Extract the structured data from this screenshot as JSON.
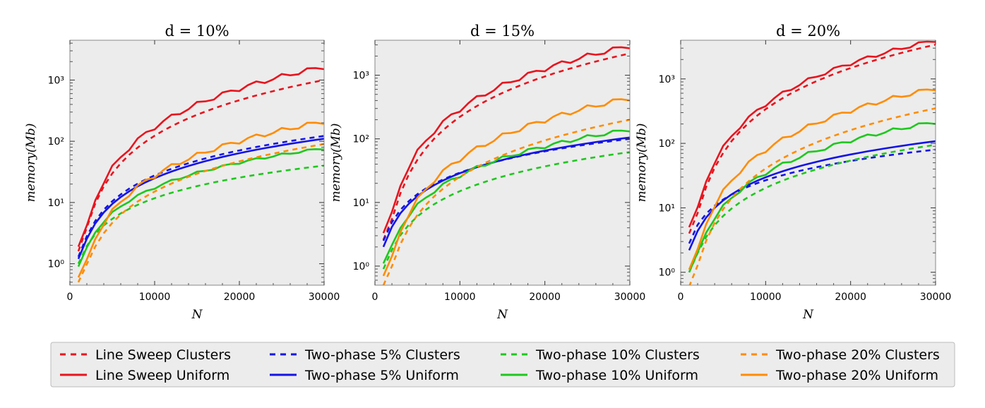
{
  "chart_data": {
    "type": "line",
    "ylabel": "memory(Mb)",
    "xlabel": "N",
    "xlim": [
      0,
      30000
    ],
    "xticks": [
      "0",
      "10000",
      "20000",
      "30000"
    ],
    "yscale": "log",
    "legend_placement": "bottom",
    "grid": false,
    "x": [
      1000,
      2000,
      3000,
      4000,
      5000,
      6000,
      7000,
      8000,
      9000,
      10000,
      11000,
      12000,
      13000,
      14000,
      15000,
      16000,
      17000,
      18000,
      19000,
      20000,
      21000,
      22000,
      23000,
      24000,
      25000,
      26000,
      27000,
      28000,
      29000,
      30000
    ],
    "series_styles": [
      {
        "name": "Line Sweep Clusters",
        "color": "#e8141e",
        "dashed": true
      },
      {
        "name": "Line Sweep Uniform",
        "color": "#e8141e",
        "dashed": false
      },
      {
        "name": "Two-phase 5% Clusters",
        "color": "#1414e6",
        "dashed": true
      },
      {
        "name": "Two-phase 5% Uniform",
        "color": "#1414e6",
        "dashed": false
      },
      {
        "name": "Two-phase 10% Clusters",
        "color": "#1ec81e",
        "dashed": true
      },
      {
        "name": "Two-phase 10% Uniform",
        "color": "#1ec81e",
        "dashed": false
      },
      {
        "name": "Two-phase 20% Clusters",
        "color": "#ff8c00",
        "dashed": true
      },
      {
        "name": "Two-phase 20% Uniform",
        "color": "#ff8c00",
        "dashed": false
      }
    ],
    "panels": [
      {
        "title": "d = 10%",
        "ylim_log10": [
          -0.35,
          3.65
        ],
        "yticks": [
          {
            "label": "10⁰",
            "v": 0
          },
          {
            "label": "10¹",
            "v": 1
          },
          {
            "label": "10²",
            "v": 2
          },
          {
            "label": "10³",
            "v": 3
          }
        ],
        "series": [
          {
            "name": "Line Sweep Clusters",
            "endpoints": [
              1.6,
              1000
            ],
            "exp": 1.8
          },
          {
            "name": "Line Sweep Uniform",
            "endpoints": [
              1.9,
              1650
            ],
            "exp": 1.95,
            "wiggle": 0.04
          },
          {
            "name": "Two-phase 5% Clusters",
            "endpoints": [
              1.3,
              122
            ],
            "exp": 1.3
          },
          {
            "name": "Two-phase 5% Uniform",
            "endpoints": [
              1.2,
              110
            ],
            "exp": 1.3
          },
          {
            "name": "Two-phase 10% Clusters",
            "endpoints": [
              1.0,
              40
            ],
            "exp": 1.1
          },
          {
            "name": "Two-phase 10% Uniform",
            "endpoints": [
              0.9,
              77
            ],
            "exp": 1.3,
            "wiggle": 0.02
          },
          {
            "name": "Two-phase 20% Clusters",
            "endpoints": [
              0.5,
              90
            ],
            "exp": 1.55
          },
          {
            "name": "Two-phase 20% Uniform",
            "endpoints": [
              0.6,
              210
            ],
            "exp": 1.75,
            "wiggle": 0.04
          }
        ]
      },
      {
        "title": "d = 15%",
        "ylim_log10": [
          -0.3,
          3.55
        ],
        "yticks": [
          {
            "label": "10⁰",
            "v": 0
          },
          {
            "label": "10¹",
            "v": 1
          },
          {
            "label": "10²",
            "v": 2
          },
          {
            "label": "10³",
            "v": 3
          }
        ],
        "series": [
          {
            "name": "Line Sweep Clusters",
            "endpoints": [
              2.6,
              2200
            ],
            "exp": 1.97
          },
          {
            "name": "Line Sweep Uniform",
            "endpoints": [
              3.3,
              2900
            ],
            "exp": 1.97,
            "wiggle": 0.04
          },
          {
            "name": "Two-phase 5% Clusters",
            "endpoints": [
              2.5,
              100
            ],
            "exp": 1.1
          },
          {
            "name": "Two-phase 5% Uniform",
            "endpoints": [
              2.0,
              105
            ],
            "exp": 1.15
          },
          {
            "name": "Two-phase 10% Clusters",
            "endpoints": [
              0.9,
              62
            ],
            "exp": 1.25
          },
          {
            "name": "Two-phase 10% Uniform",
            "endpoints": [
              1.1,
              140
            ],
            "exp": 1.45,
            "wiggle": 0.03
          },
          {
            "name": "Two-phase 20% Clusters",
            "endpoints": [
              0.5,
              200
            ],
            "exp": 1.78
          },
          {
            "name": "Two-phase 20% Uniform",
            "endpoints": [
              0.7,
              440
            ],
            "exp": 1.9,
            "wiggle": 0.04
          }
        ]
      },
      {
        "title": "d = 20%",
        "ylim_log10": [
          -0.2,
          3.6
        ],
        "yticks": [
          {
            "label": "10⁰",
            "v": 0
          },
          {
            "label": "10¹",
            "v": 1
          },
          {
            "label": "10²",
            "v": 2
          },
          {
            "label": "10³",
            "v": 3
          }
        ],
        "series": [
          {
            "name": "Line Sweep Clusters",
            "endpoints": [
              4.0,
              3400
            ],
            "exp": 1.98
          },
          {
            "name": "Line Sweep Uniform",
            "endpoints": [
              5.0,
              4000
            ],
            "exp": 1.97,
            "wiggle": 0.03
          },
          {
            "name": "Two-phase 5% Clusters",
            "endpoints": [
              2.8,
              80
            ],
            "exp": 1.0
          },
          {
            "name": "Two-phase 5% Uniform",
            "endpoints": [
              2.2,
              108
            ],
            "exp": 1.15
          },
          {
            "name": "Two-phase 10% Clusters",
            "endpoints": [
              1.0,
              95
            ],
            "exp": 1.35
          },
          {
            "name": "Two-phase 10% Uniform",
            "endpoints": [
              1.0,
              215
            ],
            "exp": 1.58,
            "wiggle": 0.03
          },
          {
            "name": "Two-phase 20% Clusters",
            "endpoints": [
              0.6,
              350
            ],
            "exp": 1.85
          },
          {
            "name": "Two-phase 20% Uniform",
            "endpoints": [
              1.1,
              720
            ],
            "exp": 1.9,
            "wiggle": 0.035
          }
        ]
      }
    ]
  }
}
